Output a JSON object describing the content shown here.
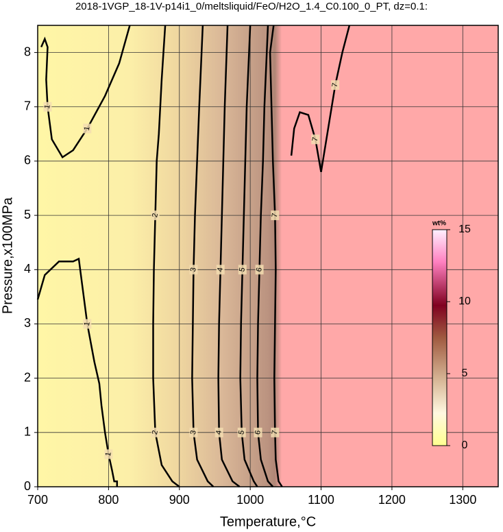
{
  "chart_data": {
    "type": "contour",
    "title": "2018-1VGP_18-1V-p14i1_0/meltsliquid/FeO/H2O_1.4_C0.100_0_PT, dz=0.1:",
    "xlabel": "Temperature,°C",
    "ylabel": "Pressure,x100MPa",
    "xlim": [
      700,
      1350
    ],
    "ylim": [
      0,
      8.5
    ],
    "xticks": [
      700,
      800,
      900,
      1000,
      1100,
      1200,
      1300
    ],
    "yticks": [
      0,
      1,
      2,
      3,
      4,
      5,
      6,
      7,
      8
    ],
    "grid": true,
    "colorbar": {
      "label": "wt%",
      "lim": [
        0,
        15
      ],
      "ticks": [
        0,
        5,
        10,
        15
      ]
    },
    "contours": [
      {
        "level": 1,
        "points": [
          [
            705,
            8.1
          ],
          [
            710,
            8.25
          ],
          [
            714,
            8.1
          ],
          [
            712,
            7.5
          ],
          [
            714,
            7.0
          ],
          [
            720,
            6.4
          ],
          [
            735,
            6.07
          ],
          [
            750,
            6.2
          ],
          [
            770,
            6.6
          ],
          [
            795,
            7.2
          ],
          [
            815,
            7.8
          ],
          [
            830,
            8.5
          ]
        ]
      },
      {
        "level": 1,
        "points": [
          [
            700,
            3.45
          ],
          [
            710,
            3.9
          ],
          [
            730,
            4.15
          ],
          [
            750,
            4.15
          ],
          [
            758,
            4.2
          ],
          [
            762,
            3.8
          ],
          [
            770,
            3.0
          ],
          [
            780,
            2.3
          ],
          [
            787,
            1.9
          ],
          [
            790,
            1.5
          ],
          [
            795,
            1.0
          ],
          [
            800,
            0.6
          ],
          [
            805,
            0.3
          ],
          [
            808,
            0.1
          ],
          [
            812,
            0.1
          ],
          [
            812,
            0
          ]
        ]
      },
      {
        "level": 2,
        "points": [
          [
            880,
            8.5
          ],
          [
            875,
            7.5
          ],
          [
            871,
            6.5
          ],
          [
            868,
            6.0
          ],
          [
            866,
            5
          ],
          [
            864,
            4
          ],
          [
            863,
            3
          ],
          [
            863,
            2
          ],
          [
            866,
            1
          ],
          [
            875,
            0.4
          ],
          [
            890,
            0.1
          ],
          [
            900,
            0
          ]
        ]
      },
      {
        "level": 3,
        "points": [
          [
            933,
            8.5
          ],
          [
            928,
            7
          ],
          [
            925,
            6
          ],
          [
            922,
            5
          ],
          [
            920,
            4
          ],
          [
            919,
            3
          ],
          [
            918,
            2
          ],
          [
            920,
            1
          ],
          [
            925,
            0.5
          ],
          [
            940,
            0.1
          ],
          [
            948,
            0
          ]
        ]
      },
      {
        "level": 4,
        "points": [
          [
            968,
            8.5
          ],
          [
            964,
            7
          ],
          [
            962,
            6
          ],
          [
            960,
            5
          ],
          [
            958,
            4
          ],
          [
            956,
            3
          ],
          [
            955,
            2
          ],
          [
            956,
            1
          ],
          [
            960,
            0.5
          ],
          [
            975,
            0.1
          ],
          [
            985,
            0
          ]
        ]
      },
      {
        "level": 5,
        "points": [
          [
            1000,
            8.5
          ],
          [
            995,
            7
          ],
          [
            993,
            6
          ],
          [
            991,
            5
          ],
          [
            989,
            4
          ],
          [
            987,
            3
          ],
          [
            986,
            2
          ],
          [
            988,
            1
          ],
          [
            992,
            0.5
          ],
          [
            1005,
            0.1
          ],
          [
            1010,
            0
          ]
        ]
      },
      {
        "level": 6,
        "points": [
          [
            1025,
            8.5
          ],
          [
            1020,
            7
          ],
          [
            1018,
            6
          ],
          [
            1015,
            5
          ],
          [
            1013,
            4
          ],
          [
            1011,
            3
          ],
          [
            1010,
            2
          ],
          [
            1011,
            1
          ],
          [
            1015,
            0.5
          ],
          [
            1025,
            0.1
          ],
          [
            1032,
            0
          ]
        ]
      },
      {
        "level": 7,
        "points": [
          [
            1033,
            8.5
          ],
          [
            1028,
            8
          ],
          [
            1030,
            7
          ],
          [
            1032,
            6
          ],
          [
            1035,
            5
          ],
          [
            1036,
            4
          ],
          [
            1035,
            3
          ],
          [
            1034,
            2
          ],
          [
            1035,
            1
          ],
          [
            1036,
            0.5
          ],
          [
            1040,
            0.1
          ],
          [
            1045,
            0
          ]
        ]
      },
      {
        "level": 7,
        "points": [
          [
            1058,
            6.1
          ],
          [
            1062,
            6.6
          ],
          [
            1070,
            6.9
          ],
          [
            1082,
            6.85
          ],
          [
            1092,
            6.4
          ],
          [
            1100,
            5.8
          ],
          [
            1110,
            6.6
          ],
          [
            1120,
            7.4
          ],
          [
            1130,
            8.0
          ],
          [
            1140,
            8.5
          ]
        ]
      }
    ]
  }
}
